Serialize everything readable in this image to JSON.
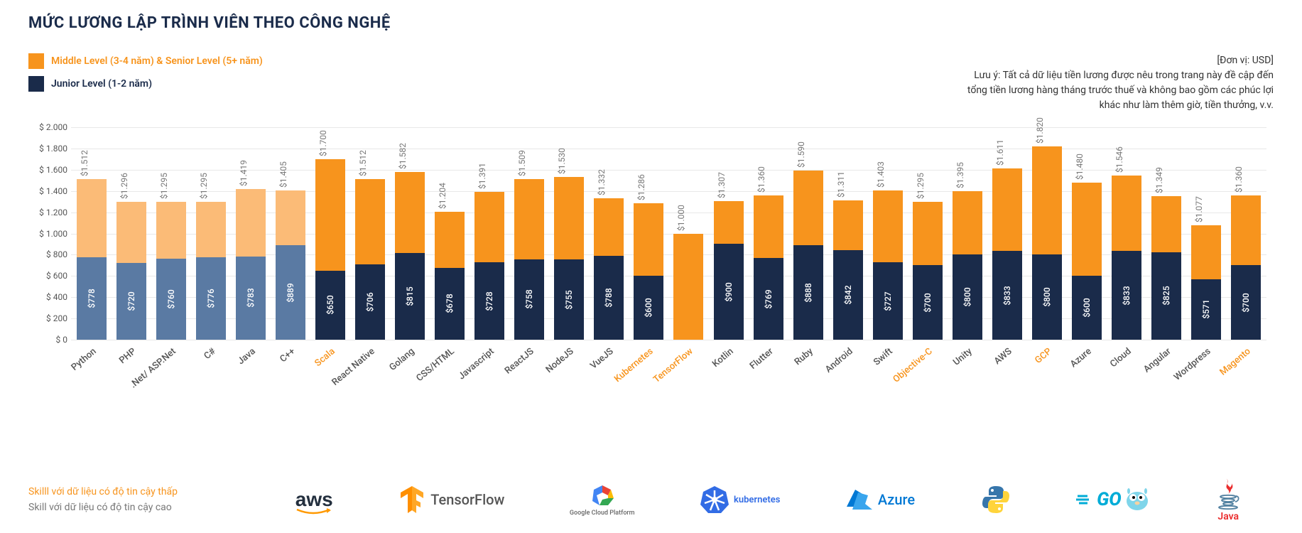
{
  "title": "MỨC LƯƠNG LẬP TRÌNH VIÊN THEO CÔNG NGHỆ",
  "legend": {
    "senior": {
      "label": "Middle Level (3-4 năm) & Senior Level (5+ năm)",
      "color": "#f7941d"
    },
    "junior": {
      "label": "Junior Level (1-2 năm)",
      "color": "#1a2b4a"
    }
  },
  "note_unit": "[Đơn vị: USD]",
  "note_line1": "Lưu ý: Tất cả dữ liệu tiền lương được nêu trong trang này đề cập đến",
  "note_line2": "tổng tiền lương hàng tháng trước thuế và không bao gồm các phúc lợi",
  "note_line3": "khác như làm thêm giờ, tiền thưởng, v.v.",
  "chart": {
    "type": "stacked-bar",
    "ylim": [
      0,
      2000
    ],
    "ytick_step": 200,
    "yticks": [
      "$ 0",
      "$ 200",
      "$ 400",
      "$ 600",
      "$ 800",
      "$ 1.000",
      "$ 1.200",
      "$ 1.400",
      "$ 1.600",
      "$ 1.800",
      "$ 2.000"
    ],
    "colors": {
      "junior_normal": "#1a2b4a",
      "junior_faded": "#5a7aa3",
      "senior_normal": "#f7941d",
      "senior_faded": "#fbbb77",
      "label_low_reliability": "#f7941d",
      "label_high_reliability": "#555555",
      "top_label_color": "#888888",
      "grid": "#e8e8e8",
      "background": "#ffffff"
    },
    "data": [
      {
        "name": "Python",
        "junior": 778,
        "total": 1512,
        "low": false,
        "faded": true
      },
      {
        "name": "PHP",
        "junior": 720,
        "total": 1296,
        "low": false,
        "faded": true
      },
      {
        "name": ".Net/ ASP.Net",
        "junior": 760,
        "total": 1295,
        "low": false,
        "faded": true
      },
      {
        "name": "C#",
        "junior": 776,
        "total": 1295,
        "low": false,
        "faded": true
      },
      {
        "name": "Java",
        "junior": 783,
        "total": 1419,
        "low": false,
        "faded": true
      },
      {
        "name": "C++",
        "junior": 889,
        "total": 1405,
        "low": false,
        "faded": true
      },
      {
        "name": "Scala",
        "junior": 650,
        "total": 1700,
        "low": true,
        "faded": false
      },
      {
        "name": "React Native",
        "junior": 706,
        "total": 1512,
        "low": false,
        "faded": false
      },
      {
        "name": "Golang",
        "junior": 815,
        "total": 1582,
        "low": false,
        "faded": false
      },
      {
        "name": "CSS/HTML",
        "junior": 678,
        "total": 1204,
        "low": false,
        "faded": false
      },
      {
        "name": "Javascript",
        "junior": 728,
        "total": 1391,
        "low": false,
        "faded": false
      },
      {
        "name": "ReactJS",
        "junior": 758,
        "total": 1509,
        "low": false,
        "faded": false
      },
      {
        "name": "NodeJS",
        "junior": 755,
        "total": 1530,
        "low": false,
        "faded": false
      },
      {
        "name": "VueJS",
        "junior": 788,
        "total": 1332,
        "low": false,
        "faded": false
      },
      {
        "name": "Kubernetes",
        "junior": 600,
        "total": 1286,
        "low": true,
        "faded": false
      },
      {
        "name": "TensorFlow",
        "junior": 0,
        "total": 1000,
        "low": true,
        "faded": false
      },
      {
        "name": "Kotlin",
        "junior": 900,
        "total": 1307,
        "low": false,
        "faded": false
      },
      {
        "name": "Flutter",
        "junior": 769,
        "total": 1360,
        "low": false,
        "faded": false
      },
      {
        "name": "Ruby",
        "junior": 888,
        "total": 1590,
        "low": false,
        "faded": false
      },
      {
        "name": "Android",
        "junior": 842,
        "total": 1311,
        "low": false,
        "faded": false
      },
      {
        "name": "Swift",
        "junior": 727,
        "total": 1403,
        "low": false,
        "faded": false
      },
      {
        "name": "Objective-C",
        "junior": 700,
        "total": 1295,
        "low": true,
        "faded": false
      },
      {
        "name": "Unity",
        "junior": 800,
        "total": 1395,
        "low": false,
        "faded": false
      },
      {
        "name": "AWS",
        "junior": 833,
        "total": 1611,
        "low": false,
        "faded": false
      },
      {
        "name": "GCP",
        "junior": 800,
        "total": 1820,
        "low": true,
        "faded": false
      },
      {
        "name": "Azure",
        "junior": 600,
        "total": 1480,
        "low": false,
        "faded": false
      },
      {
        "name": "Cloud",
        "junior": 833,
        "total": 1546,
        "low": false,
        "faded": false
      },
      {
        "name": "Angular",
        "junior": 825,
        "total": 1349,
        "low": false,
        "faded": false
      },
      {
        "name": "Wordpress",
        "junior": 571,
        "total": 1077,
        "low": false,
        "faded": false
      },
      {
        "name": "Magento",
        "junior": 700,
        "total": 1360,
        "low": true,
        "faded": false
      }
    ]
  },
  "reliability": {
    "low": "Skilll với dữ liệu có độ tin cậy thấp",
    "high": "Skill với dữ liệu có độ tin cậy cao"
  },
  "logos": [
    {
      "name": "aws",
      "label": "aws"
    },
    {
      "name": "tensorflow",
      "label": "TensorFlow"
    },
    {
      "name": "gcp",
      "label": "Google Cloud Platform"
    },
    {
      "name": "kubernetes",
      "label": "kubernetes"
    },
    {
      "name": "azure",
      "label": "Azure"
    },
    {
      "name": "python",
      "label": ""
    },
    {
      "name": "go",
      "label": "GO"
    },
    {
      "name": "java",
      "label": "Java"
    }
  ]
}
